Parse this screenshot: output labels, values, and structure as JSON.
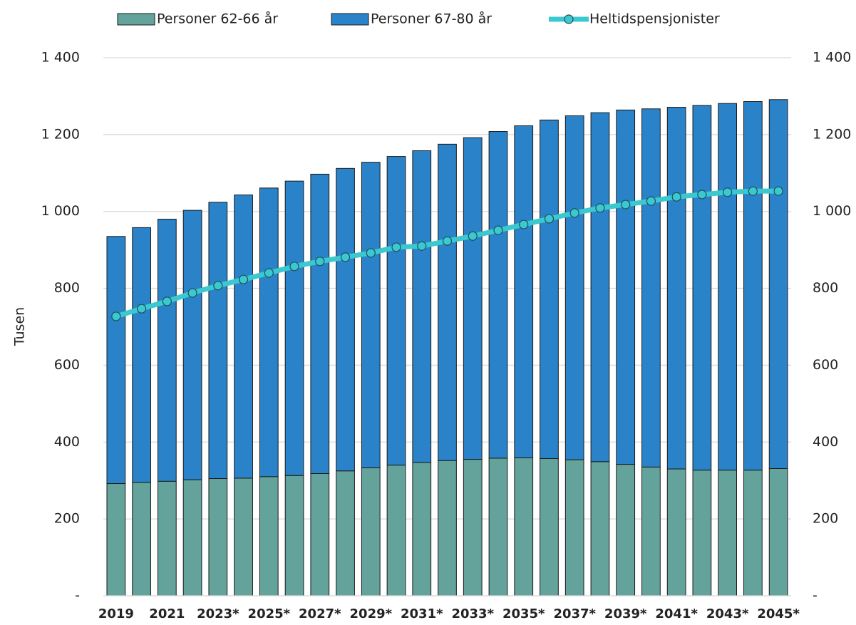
{
  "chart_data": {
    "type": "bar",
    "stacked": true,
    "y_label": "Tusen",
    "categories": [
      "2019",
      null,
      "2021",
      null,
      "2023*",
      null,
      "2025*",
      null,
      "2027*",
      null,
      "2029*",
      null,
      "2031*",
      null,
      "2033*",
      null,
      "2035*",
      null,
      "2037*",
      null,
      "2039*",
      null,
      "2041*",
      null,
      "2043*",
      null,
      "2045*"
    ],
    "series": [
      {
        "name": "Personer 62-66 år",
        "color": "#64a39b",
        "type": "bar",
        "values": [
          292,
          295,
          298,
          302,
          305,
          306,
          310,
          313,
          318,
          325,
          333,
          340,
          347,
          352,
          355,
          358,
          359,
          357,
          354,
          349,
          342,
          335,
          330,
          327,
          327,
          327,
          331
        ]
      },
      {
        "name": "Personer 67-80 år",
        "color": "#2a83c8",
        "type": "bar",
        "values": [
          643,
          663,
          682,
          701,
          719,
          737,
          751,
          766,
          779,
          787,
          795,
          803,
          811,
          823,
          837,
          850,
          864,
          881,
          895,
          908,
          922,
          932,
          941,
          949,
          954,
          959,
          960
        ]
      },
      {
        "name": "Heltidspensjonister",
        "color": "#3cc8d0",
        "type": "line",
        "values": [
          727,
          747,
          766,
          788,
          807,
          823,
          840,
          857,
          870,
          881,
          892,
          907,
          910,
          923,
          936,
          951,
          966,
          981,
          996,
          1009,
          1018,
          1027,
          1038,
          1044,
          1050,
          1053,
          1053
        ]
      }
    ],
    "ylim": [
      0,
      1400
    ],
    "yticks": [
      {
        "value": 0,
        "label": "-"
      },
      200,
      400,
      600,
      800,
      {
        "value": 1000,
        "label": "1 000"
      },
      {
        "value": 1200,
        "label": "1 200"
      },
      {
        "value": 1400,
        "label": "1 400"
      }
    ],
    "y2lim": [
      0,
      1400
    ],
    "y2ticks": [
      {
        "value": 0,
        "label": "-"
      },
      200,
      400,
      600,
      800,
      {
        "value": 1000,
        "label": "1 000"
      },
      {
        "value": 1200,
        "label": "1 200"
      },
      {
        "value": 1400,
        "label": "1 400"
      }
    ],
    "grid": true,
    "legend": "top"
  }
}
